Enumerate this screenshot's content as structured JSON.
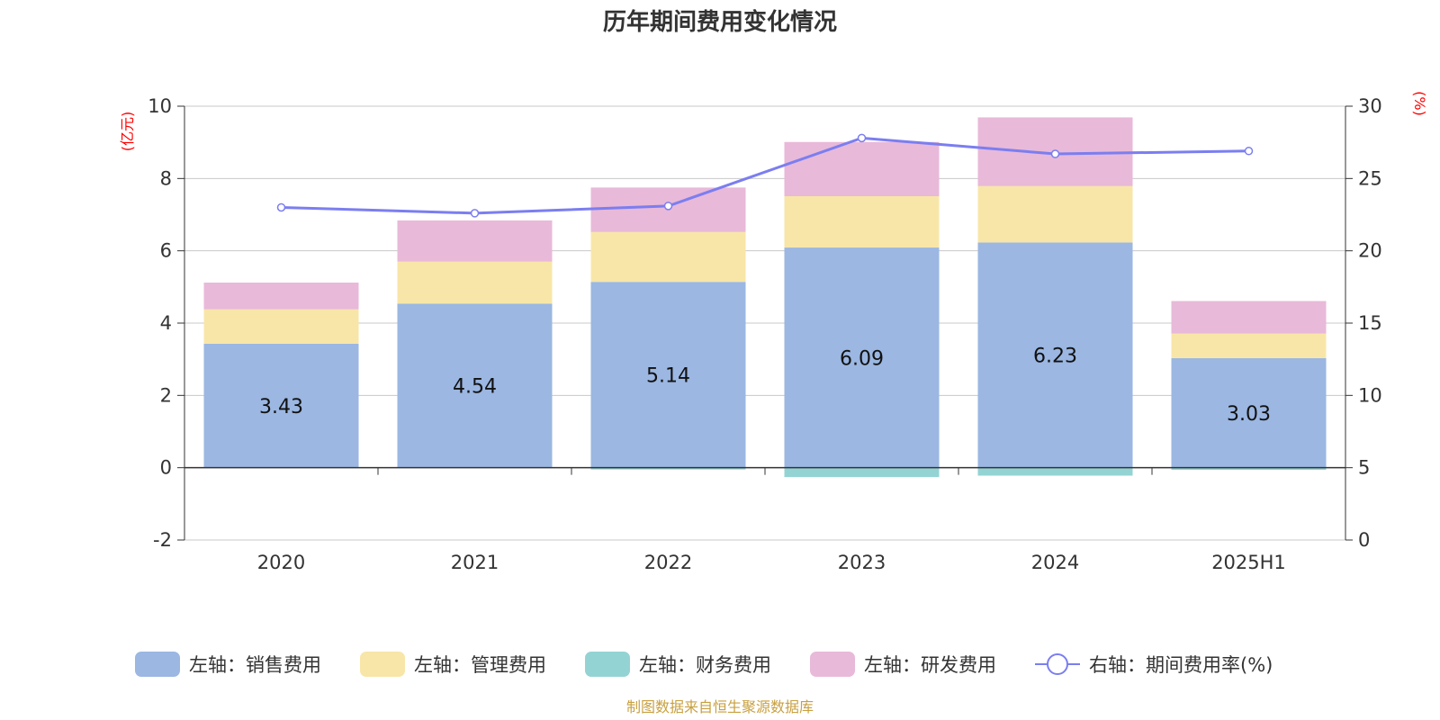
{
  "chart_data": {
    "type": "bar",
    "title": "历年期间费用变化情况",
    "categories": [
      "2020",
      "2021",
      "2022",
      "2023",
      "2024",
      "2025H1"
    ],
    "left_axis": {
      "unit": "(亿元)",
      "ylim": [
        -2,
        10
      ],
      "ticks": [
        "-2",
        "0",
        "2",
        "4",
        "6",
        "8",
        "10"
      ]
    },
    "right_axis": {
      "unit": "(%)",
      "ylim": [
        0,
        30
      ],
      "ticks": [
        "0",
        "5",
        "10",
        "15",
        "20",
        "25",
        "30"
      ]
    },
    "series": [
      {
        "name": "左轴：销售费用",
        "axis": "left",
        "color": "#9bb7e2",
        "values": [
          3.43,
          4.54,
          5.14,
          6.09,
          6.23,
          3.03
        ],
        "labels": [
          "3.43",
          "4.54",
          "5.14",
          "6.09",
          "6.23",
          "3.03"
        ]
      },
      {
        "name": "左轴：管理费用",
        "axis": "left",
        "color": "#f8e6a8",
        "values": [
          0.95,
          1.16,
          1.38,
          1.42,
          1.56,
          0.68
        ]
      },
      {
        "name": "左轴：财务费用",
        "axis": "left",
        "color": "#94d3d4",
        "values": [
          0.0,
          0.0,
          -0.05,
          -0.26,
          -0.22,
          -0.06
        ]
      },
      {
        "name": "左轴：研发费用",
        "axis": "left",
        "color": "#e8b9d9",
        "values": [
          0.74,
          1.14,
          1.23,
          1.5,
          1.9,
          0.9
        ]
      },
      {
        "name": "右轴：期间费用率(%)",
        "axis": "right",
        "type": "line",
        "color": "#7b7ef0",
        "values": [
          23.0,
          22.6,
          23.1,
          27.8,
          26.7,
          26.9
        ]
      }
    ],
    "grid": true,
    "legend_position": "bottom"
  },
  "footer": {
    "source": "制图数据来自恒生聚源数据库"
  }
}
